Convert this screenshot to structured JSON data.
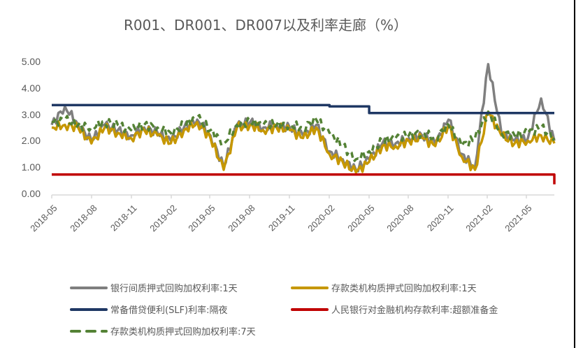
{
  "chart_data": {
    "type": "line",
    "title": "R001、DR001、DR007以及利率走廊（%）",
    "xlabel": "",
    "ylabel": "",
    "ylim": [
      0,
      5
    ],
    "yticks": [
      "5.00",
      "4.00",
      "3.00",
      "2.00",
      "1.00",
      "0.00"
    ],
    "xticks": [
      "2018-05",
      "2018-08",
      "2018-11",
      "2019-02",
      "2019-05",
      "2019-08",
      "2019-11",
      "2020-02",
      "2020-05",
      "2020-08",
      "2020-11",
      "2021-02",
      "2021-05"
    ],
    "grid": false,
    "legend_position": "bottom",
    "x": [
      "2018-05",
      "2018-06",
      "2018-07",
      "2018-08",
      "2018-09",
      "2018-10",
      "2018-11",
      "2018-12",
      "2019-01",
      "2019-02",
      "2019-03",
      "2019-04",
      "2019-05",
      "2019-06",
      "2019-07",
      "2019-08",
      "2019-09",
      "2019-10",
      "2019-11",
      "2019-12",
      "2020-01",
      "2020-02",
      "2020-03",
      "2020-04",
      "2020-05",
      "2020-06",
      "2020-07",
      "2020-08",
      "2020-09",
      "2020-10",
      "2020-11",
      "2020-12",
      "2021-01",
      "2021-02",
      "2021-03",
      "2021-04",
      "2021-05",
      "2021-06",
      "2021-07"
    ],
    "series": [
      {
        "name": "银行间质押式回购加权利率:1天",
        "color": "#7F7F7F",
        "style": "solid",
        "values": [
          2.6,
          3.3,
          2.6,
          2.0,
          2.6,
          2.4,
          2.2,
          2.5,
          2.3,
          2.0,
          2.5,
          2.8,
          2.2,
          1.0,
          2.6,
          2.7,
          2.5,
          2.6,
          2.5,
          2.2,
          2.6,
          1.6,
          1.3,
          0.9,
          1.3,
          1.9,
          1.9,
          2.1,
          2.2,
          1.9,
          2.8,
          1.5,
          1.0,
          4.9,
          2.3,
          2.0,
          2.1,
          3.6,
          2.0
        ]
      },
      {
        "name": "存款类机构质押式回购加权利率:1天",
        "color": "#C69700",
        "style": "solid",
        "values": [
          2.5,
          2.6,
          2.5,
          1.9,
          2.5,
          2.3,
          2.1,
          2.4,
          2.2,
          1.9,
          2.4,
          2.7,
          2.1,
          0.9,
          2.5,
          2.6,
          2.4,
          2.5,
          2.4,
          2.1,
          2.5,
          1.5,
          1.2,
          0.8,
          1.2,
          1.8,
          1.8,
          2.0,
          2.1,
          1.8,
          2.6,
          1.4,
          0.9,
          3.1,
          2.2,
          1.9,
          2.0,
          2.2,
          1.9
        ]
      },
      {
        "name": "常备借贷便利(SLF)利率:隔夜",
        "color": "#1F3864",
        "style": "solid",
        "values": [
          3.35,
          3.35,
          3.35,
          3.35,
          3.35,
          3.35,
          3.35,
          3.35,
          3.35,
          3.35,
          3.35,
          3.35,
          3.35,
          3.35,
          3.35,
          3.35,
          3.35,
          3.35,
          3.35,
          3.35,
          3.35,
          3.3,
          3.3,
          3.3,
          3.05,
          3.05,
          3.05,
          3.05,
          3.05,
          3.05,
          3.05,
          3.05,
          3.05,
          3.05,
          3.05,
          3.05,
          3.05,
          3.05,
          3.05
        ]
      },
      {
        "name": "人民银行对金融机构存款利率:超额准备金",
        "color": "#C00000",
        "style": "solid",
        "values": [
          0.72,
          0.72,
          0.72,
          0.72,
          0.72,
          0.72,
          0.72,
          0.72,
          0.72,
          0.72,
          0.72,
          0.72,
          0.72,
          0.72,
          0.72,
          0.72,
          0.72,
          0.72,
          0.72,
          0.72,
          0.72,
          0.72,
          0.72,
          0.72,
          0.72,
          0.72,
          0.72,
          0.72,
          0.72,
          0.72,
          0.72,
          0.72,
          0.72,
          0.72,
          0.72,
          0.72,
          0.72,
          0.72,
          0.35
        ]
      },
      {
        "name": "存款类机构质押式回购加权利率:7天",
        "color": "#548235",
        "style": "dashed",
        "values": [
          2.7,
          2.8,
          2.6,
          2.5,
          2.7,
          2.6,
          2.4,
          2.6,
          2.5,
          2.3,
          2.6,
          2.9,
          2.4,
          1.9,
          2.6,
          2.7,
          2.6,
          2.6,
          2.6,
          2.5,
          2.8,
          2.3,
          1.8,
          1.3,
          1.6,
          2.0,
          2.1,
          2.2,
          2.3,
          2.1,
          2.6,
          1.8,
          2.1,
          3.1,
          2.3,
          2.2,
          2.3,
          2.5,
          2.1
        ]
      }
    ]
  },
  "legend": {
    "items": [
      {
        "label": "银行间质押式回购加权利率:1天",
        "color": "#7F7F7F"
      },
      {
        "label": "存款类机构质押式回购加权利率:1天",
        "color": "#C69700"
      },
      {
        "label": "常备借贷便利(SLF)利率:隔夜",
        "color": "#1F3864"
      },
      {
        "label": "人民银行对金融机构存款利率:超额准备金",
        "color": "#C00000"
      },
      {
        "label": "存款类机构质押式回购加权利率:7天",
        "color": "#548235"
      }
    ]
  }
}
